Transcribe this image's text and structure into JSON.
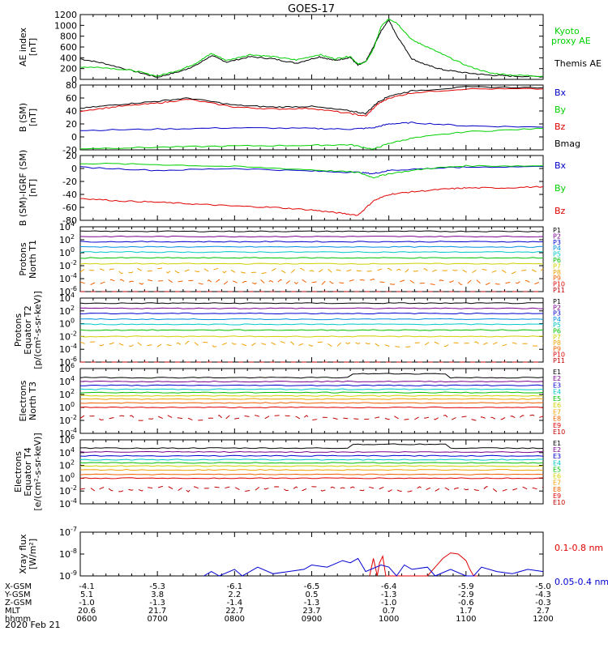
{
  "title": "GOES-17",
  "date": "2020 Feb 21",
  "time_axis": {
    "start_h": 6,
    "end_h": 12,
    "tick_hours": [
      6,
      7,
      8,
      9,
      10,
      11,
      12
    ],
    "tick_labels": [
      "0600",
      "0700",
      "0800",
      "0900",
      "1000",
      "1100",
      "1200"
    ]
  },
  "orbit_table": {
    "rows": [
      {
        "label": "X-GSM",
        "values": [
          "-4.1",
          "-5.3",
          "-6.1",
          "-6.5",
          "-6.4",
          "-5.9",
          "-5.0"
        ]
      },
      {
        "label": "Y-GSM",
        "values": [
          "5.1",
          "3.8",
          "2.2",
          "0.5",
          "-1.3",
          "-2.9",
          "-4.3"
        ]
      },
      {
        "label": "Z-GSM",
        "values": [
          "-1.0",
          "-1.3",
          "-1.4",
          "-1.3",
          "-1.0",
          "-0.6",
          "-0.3"
        ]
      },
      {
        "label": "MLT",
        "values": [
          "20.6",
          "21.7",
          "22.7",
          "23.7",
          "0.7",
          "1.7",
          "2.7"
        ]
      },
      {
        "label": "hhmm",
        "values": [
          "0600",
          "0700",
          "0800",
          "0900",
          "1000",
          "1100",
          "1200"
        ]
      }
    ]
  },
  "chart_data": [
    {
      "type": "line",
      "name": "ae-index",
      "ylabel": [
        "AE index",
        "[nT]"
      ],
      "ylim": [
        0,
        1200
      ],
      "ticks": [
        0,
        200,
        400,
        600,
        800,
        1000,
        1200
      ],
      "tick_labels": [
        "0",
        "200",
        "400",
        "600",
        "800",
        "1000",
        "1200"
      ],
      "series": [
        {
          "name": "Themis AE",
          "color": "#000000",
          "x": [
            6,
            6.3,
            6.7,
            7,
            7.3,
            7.5,
            7.7,
            7.9,
            8.2,
            8.5,
            8.8,
            9.1,
            9.3,
            9.5,
            9.6,
            9.7,
            9.8,
            9.9,
            10,
            10.1,
            10.3,
            10.5,
            10.7,
            11,
            11.3,
            11.6,
            12
          ],
          "y": [
            380,
            300,
            150,
            40,
            150,
            260,
            440,
            320,
            420,
            380,
            300,
            420,
            350,
            410,
            260,
            330,
            600,
            900,
            1100,
            820,
            380,
            260,
            180,
            120,
            80,
            60,
            50
          ]
        },
        {
          "name": "Kyoto proxy AE",
          "color": "#00d000",
          "x": [
            6,
            6.3,
            6.7,
            7,
            7.3,
            7.5,
            7.7,
            7.9,
            8.2,
            8.5,
            8.8,
            9.1,
            9.3,
            9.5,
            9.6,
            9.7,
            9.8,
            9.9,
            10,
            10.1,
            10.3,
            10.5,
            10.7,
            11,
            11.3,
            11.6,
            12
          ],
          "y": [
            230,
            220,
            160,
            60,
            180,
            300,
            480,
            350,
            460,
            420,
            360,
            460,
            380,
            430,
            280,
            320,
            560,
            980,
            1120,
            1050,
            730,
            600,
            460,
            260,
            120,
            80,
            60
          ]
        }
      ]
    },
    {
      "type": "line",
      "name": "b-sm",
      "ylabel": [
        "B (SM)",
        "[nT]"
      ],
      "ylim": [
        -20,
        80
      ],
      "ticks": [
        -20,
        0,
        20,
        40,
        60,
        80
      ],
      "tick_labels": [
        "-20",
        "0",
        "20",
        "40",
        "60",
        "80"
      ],
      "series": [
        {
          "name": "Bx",
          "color": "#0000c8",
          "x": [
            6,
            7,
            8,
            9,
            9.5,
            9.8,
            10,
            10.3,
            11,
            12
          ],
          "y": [
            10,
            12,
            14,
            13,
            12,
            14,
            20,
            22,
            17,
            15
          ]
        },
        {
          "name": "By",
          "color": "#00d000",
          "x": [
            6,
            7,
            8,
            9,
            9.5,
            9.8,
            10,
            10.3,
            11,
            12
          ],
          "y": [
            -18,
            -16,
            -14,
            -13,
            -12,
            -19,
            -10,
            -2,
            8,
            13
          ]
        },
        {
          "name": "Bz",
          "color": "#e00000",
          "x": [
            6,
            6.5,
            7,
            7.4,
            8,
            8.5,
            9,
            9.5,
            9.7,
            9.85,
            10,
            10.3,
            11,
            12
          ],
          "y": [
            40,
            47,
            52,
            58,
            46,
            43,
            44,
            36,
            32,
            50,
            60,
            68,
            74,
            74
          ]
        },
        {
          "name": "Bmag",
          "color": "#000000",
          "x": [
            6,
            6.5,
            7,
            7.4,
            8,
            8.5,
            9,
            9.5,
            9.7,
            9.85,
            10,
            10.3,
            11,
            12
          ],
          "y": [
            44,
            50,
            55,
            60,
            49,
            46,
            47,
            40,
            36,
            53,
            63,
            71,
            77,
            76
          ]
        }
      ]
    },
    {
      "type": "line",
      "name": "b-sm-igrf",
      "ylabel": [
        "B (SM)-IGRF (SM)",
        "[nT]"
      ],
      "ylim": [
        -80,
        20
      ],
      "ticks": [
        -80,
        -60,
        -40,
        -20,
        0,
        20
      ],
      "tick_labels": [
        "-80",
        "-60",
        "-40",
        "-20",
        "0",
        "20"
      ],
      "series": [
        {
          "name": "Bx",
          "color": "#0000c8",
          "x": [
            6,
            7,
            8,
            9,
            9.6,
            9.8,
            10,
            10.5,
            11,
            12
          ],
          "y": [
            2,
            -3,
            0,
            -4,
            -6,
            -8,
            -3,
            0,
            2,
            3
          ]
        },
        {
          "name": "By",
          "color": "#00d000",
          "x": [
            6,
            7,
            8,
            9,
            9.6,
            9.8,
            10,
            10.5,
            11,
            12
          ],
          "y": [
            8,
            6,
            3,
            -2,
            -6,
            -14,
            -8,
            0,
            4,
            4
          ]
        },
        {
          "name": "Bz",
          "color": "#e00000",
          "x": [
            6,
            6.5,
            7,
            7.5,
            8,
            8.5,
            9,
            9.3,
            9.6,
            9.8,
            10,
            10.3,
            10.7,
            11,
            11.5,
            12
          ],
          "y": [
            -46,
            -50,
            -52,
            -55,
            -58,
            -60,
            -64,
            -68,
            -72,
            -50,
            -40,
            -36,
            -32,
            -30,
            -30,
            -28
          ]
        }
      ]
    },
    {
      "type": "line",
      "name": "protons-north-t1",
      "ylabel": [
        "Protons",
        "North T1"
      ],
      "ylim": [
        -6,
        4
      ],
      "log": true,
      "ticks": [
        4,
        2,
        0,
        -2,
        -4,
        -6
      ],
      "tick_labels": [
        "10",
        "10",
        "10",
        "10",
        "10",
        "10"
      ],
      "tick_exponents": [
        "4",
        "2",
        "0",
        "-2",
        "-4",
        "-6"
      ],
      "channels": [
        {
          "name": "P1",
          "color": "#000000",
          "level": 3.3
        },
        {
          "name": "P2",
          "color": "#7a0090",
          "level": 2.5
        },
        {
          "name": "P3",
          "color": "#0000d0",
          "level": 1.7
        },
        {
          "name": "P4",
          "color": "#0090e0",
          "level": 0.9
        },
        {
          "name": "P5",
          "color": "#00c8c8",
          "level": 0.1
        },
        {
          "name": "P6",
          "color": "#00c000",
          "level": -0.8
        },
        {
          "name": "P7",
          "color": "#d0d000",
          "level": -1.7
        },
        {
          "name": "P8",
          "color": "#f0a000",
          "level": -2.8
        },
        {
          "name": "P9",
          "color": "#f06000",
          "level": -4.5
        },
        {
          "name": "P10",
          "color": "#e00000",
          "level": -6.5
        },
        {
          "name": "P11",
          "color": "#c00000",
          "level": -6.8
        }
      ]
    },
    {
      "type": "line",
      "name": "protons-equator-t2",
      "ylabel": [
        "Protons",
        "Equator T2",
        "[p/(cm²-s-sr-keV)]"
      ],
      "ylim": [
        -6,
        4
      ],
      "log": true,
      "ticks": [
        4,
        2,
        0,
        -2,
        -4,
        -6
      ],
      "tick_labels": [
        "10",
        "10",
        "10",
        "10",
        "10",
        "10"
      ],
      "tick_exponents": [
        "4",
        "2",
        "0",
        "-2",
        "-4",
        "-6"
      ],
      "channels": [
        {
          "name": "P1",
          "color": "#000000",
          "level": 3.2
        },
        {
          "name": "P2",
          "color": "#7a0090",
          "level": 2.4
        },
        {
          "name": "P3",
          "color": "#0000d0",
          "level": 1.6
        },
        {
          "name": "P4",
          "color": "#0090e0",
          "level": 0.7
        },
        {
          "name": "P5",
          "color": "#00c8c8",
          "level": -0.1
        },
        {
          "name": "P6",
          "color": "#00c000",
          "level": -1.0
        },
        {
          "name": "P7",
          "color": "#d0d000",
          "level": -2.0
        },
        {
          "name": "P8",
          "color": "#f0a000",
          "level": -3.2
        },
        {
          "name": "P9",
          "color": "#f06000",
          "level": -6.5
        },
        {
          "name": "P10",
          "color": "#e00000",
          "level": -6.6
        },
        {
          "name": "P11",
          "color": "#c00000",
          "level": -6.8
        }
      ]
    },
    {
      "type": "line",
      "name": "electrons-north-t3",
      "ylabel": [
        "Electrons",
        "North T3"
      ],
      "ylim": [
        -4,
        6
      ],
      "log": true,
      "ticks": [
        6,
        4,
        2,
        0,
        -2,
        -4
      ],
      "tick_labels": [
        "10",
        "10",
        "10",
        "10",
        "10",
        "10"
      ],
      "tick_exponents": [
        "6",
        "4",
        "2",
        "0",
        "-2",
        "-4"
      ],
      "channels": [
        {
          "name": "E1",
          "color": "#000000",
          "level": 4.6
        },
        {
          "name": "E2",
          "color": "#7a0090",
          "level": 4.0
        },
        {
          "name": "E3",
          "color": "#0000d0",
          "level": 3.4
        },
        {
          "name": "E4",
          "color": "#00c8c8",
          "level": 2.8
        },
        {
          "name": "E5",
          "color": "#00c000",
          "level": 2.3
        },
        {
          "name": "E6",
          "color": "#d0d000",
          "level": 1.8
        },
        {
          "name": "E7",
          "color": "#f0a000",
          "level": 1.3
        },
        {
          "name": "E8",
          "color": "#f06000",
          "level": 0.7
        },
        {
          "name": "E9",
          "color": "#e00000",
          "level": 0.0
        },
        {
          "name": "E10",
          "color": "#c00000",
          "level": -1.6
        }
      ]
    },
    {
      "type": "line",
      "name": "electrons-equator-t4",
      "ylabel": [
        "Electrons",
        "Equator T4",
        "[e/(cm²-s-sr-keV)]"
      ],
      "ylim": [
        -4,
        6
      ],
      "log": true,
      "ticks": [
        6,
        4,
        2,
        0,
        -2,
        -4
      ],
      "tick_labels": [
        "10",
        "10",
        "10",
        "10",
        "10",
        "10"
      ],
      "tick_exponents": [
        "6",
        "4",
        "2",
        "0",
        "-2",
        "-4"
      ],
      "channels": [
        {
          "name": "E1",
          "color": "#000000",
          "level": 4.7
        },
        {
          "name": "E2",
          "color": "#7a0090",
          "level": 4.1
        },
        {
          "name": "E3",
          "color": "#0000d0",
          "level": 3.5
        },
        {
          "name": "E4",
          "color": "#00c8c8",
          "level": 2.9
        },
        {
          "name": "E5",
          "color": "#00c000",
          "level": 2.4
        },
        {
          "name": "E6",
          "color": "#d0d000",
          "level": 1.9
        },
        {
          "name": "E7",
          "color": "#f0a000",
          "level": 1.3
        },
        {
          "name": "E8",
          "color": "#f06000",
          "level": 0.6
        },
        {
          "name": "E9",
          "color": "#e00000",
          "level": 0.0
        },
        {
          "name": "E10",
          "color": "#c00000",
          "level": -1.7
        }
      ]
    },
    {
      "type": "line",
      "name": "xray-flux",
      "ylabel": [
        "Xray flux",
        "[W/m²]"
      ],
      "ylim": [
        -9,
        -7
      ],
      "log": true,
      "ticks": [
        -7,
        -8,
        -9
      ],
      "tick_labels": [
        "10",
        "10",
        "10"
      ],
      "tick_exponents": [
        "-7",
        "-8",
        "-9"
      ],
      "series": [
        {
          "name": "0.1-0.8 nm",
          "color": "#e00000",
          "x": [
            9.75,
            9.8,
            9.85,
            9.88,
            9.92,
            9.96,
            10.0,
            10.5,
            10.6,
            10.7,
            10.8,
            10.9,
            11.0,
            11.05,
            11.1,
            11.15
          ],
          "y": [
            -9,
            -8.2,
            -9,
            -8.4,
            -8.1,
            -9,
            -9,
            -9,
            -8.6,
            -8.2,
            -7.95,
            -8.0,
            -8.3,
            -8.7,
            -9,
            -9
          ]
        },
        {
          "name": "0.05-0.4 nm",
          "color": "#0000d0",
          "x": [
            7.6,
            7.7,
            7.8,
            8.0,
            8.1,
            8.3,
            8.5,
            8.7,
            8.9,
            9.0,
            9.2,
            9.4,
            9.5,
            9.6,
            9.7,
            9.9,
            10.0,
            10.1,
            10.2,
            10.3,
            10.5,
            10.6,
            10.8,
            11.0,
            11.1,
            11.2,
            11.4,
            11.6,
            11.8,
            12.0
          ],
          "y": [
            -9,
            -8.8,
            -9,
            -8.7,
            -9,
            -8.6,
            -8.9,
            -8.8,
            -8.7,
            -8.5,
            -8.6,
            -8.3,
            -8.4,
            -8.2,
            -8.8,
            -8.5,
            -8.6,
            -9,
            -8.5,
            -8.7,
            -8.6,
            -9,
            -8.7,
            -9,
            -9,
            -8.6,
            -8.8,
            -8.9,
            -8.7,
            -8.8
          ]
        }
      ]
    }
  ],
  "legends": {
    "ae": [
      "Kyoto",
      "proxy AE",
      "Themis AE"
    ],
    "bsm": [
      "Bx",
      "By",
      "Bz",
      "Bmag"
    ],
    "bigrf": [
      "Bx",
      "By",
      "Bz"
    ],
    "xray": [
      "0.1-0.8 nm",
      "0.05-0.4 nm"
    ]
  }
}
